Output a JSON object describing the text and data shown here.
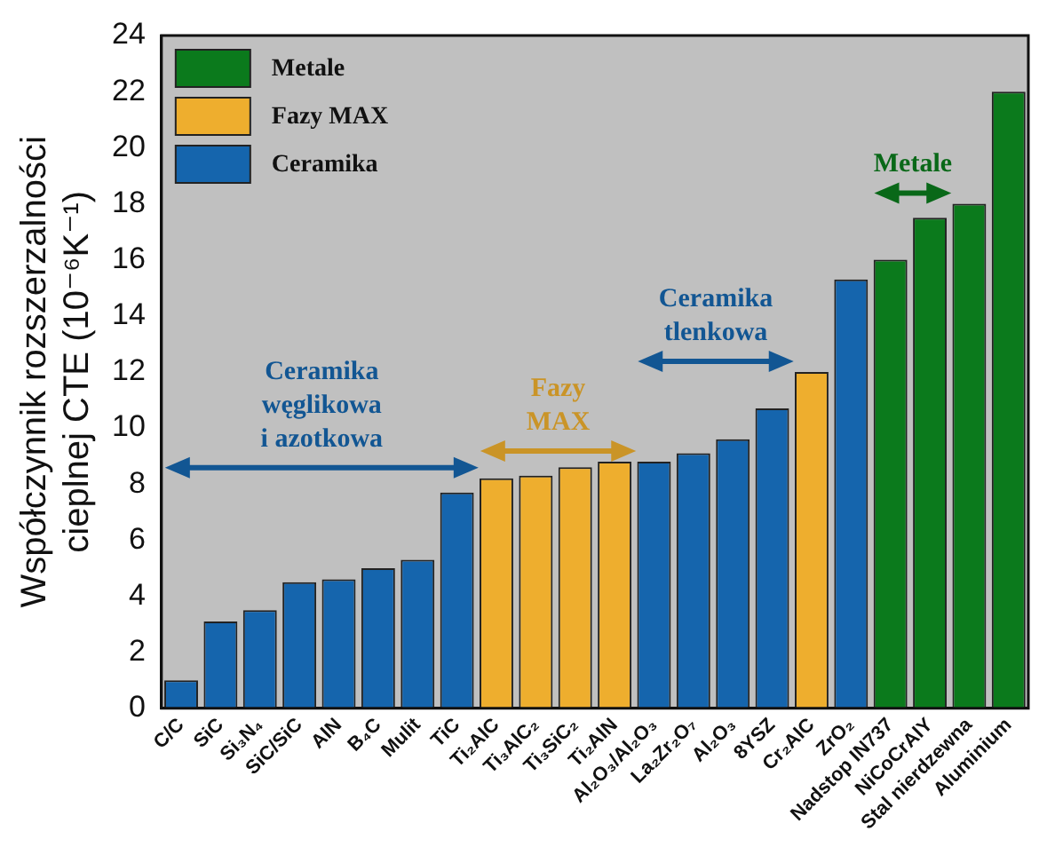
{
  "chart_data": {
    "type": "bar",
    "ylabel": "Współczynnik rozszerzalności\ncieplnej CTE (10⁻⁶K⁻¹)",
    "categories": [
      "C/C",
      "SiC",
      "Si₃N₄",
      "SiC/SiC",
      "AlN",
      "B₄C",
      "Mulit",
      "TiC",
      "Ti₂AlC",
      "Ti₃AlC₂",
      "Ti₃SiC₂",
      "Ti₂AlN",
      "Al₂O₃/Al₂O₃",
      "La₂Zr₂O₇",
      "Al₂O₃",
      "8YSZ",
      "Cr₂AlC",
      "ZrO₂",
      "Nadstop IN737",
      "NiCoCrAlY",
      "Stal nierdzewna",
      "Aluminium"
    ],
    "series": [
      {
        "name": "Metale",
        "color": "#0b7a1c",
        "values": [
          null,
          null,
          null,
          null,
          null,
          null,
          null,
          null,
          null,
          null,
          null,
          null,
          null,
          null,
          null,
          null,
          null,
          null,
          16.0,
          17.5,
          18.0,
          22.0
        ]
      },
      {
        "name": "Fazy MAX",
        "color": "#eeae2e",
        "values": [
          null,
          null,
          null,
          null,
          null,
          null,
          null,
          null,
          8.2,
          8.3,
          8.6,
          8.8,
          null,
          null,
          null,
          null,
          12.0,
          null,
          null,
          null,
          null,
          null
        ]
      },
      {
        "name": "Ceramika",
        "color": "#1565ad",
        "values": [
          1.0,
          3.1,
          3.5,
          4.5,
          4.6,
          5.0,
          5.3,
          7.7,
          null,
          null,
          null,
          null,
          8.8,
          9.1,
          9.6,
          10.7,
          null,
          15.3,
          null,
          null,
          null,
          null
        ]
      }
    ],
    "ylim": [
      0,
      24
    ],
    "yticks": [
      0,
      2,
      4,
      6,
      8,
      10,
      12,
      14,
      16,
      18,
      20,
      22,
      24
    ],
    "annotations": [
      "Ceramika\nwęglikowa\ni azotkowa",
      {
        "text": "Fazy\nMAX",
        "x": "Al₂O₃/Al₂O₃",
        "y": 8.8
      },
      {
        "text": "Ceramika\ntlenkowa",
        "x": "Cr₂AlC",
        "y": 12.0
      },
      {
        "text": "Metale",
        "x": "Stal nierdzewna",
        "y": 18.0
      }
    ],
    "grid": false,
    "legend": "top left"
  }
}
